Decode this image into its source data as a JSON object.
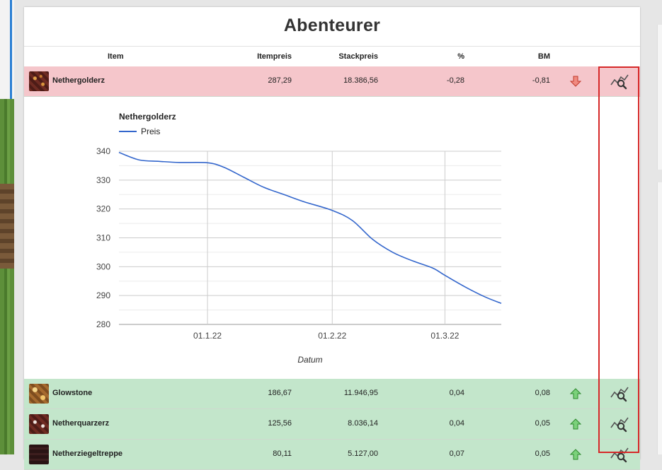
{
  "page": {
    "title": "Abenteurer"
  },
  "table": {
    "headers": {
      "item": "Item",
      "itemprice": "Itempreis",
      "stackprice": "Stackpreis",
      "percent": "%",
      "bm": "BM"
    },
    "rows": [
      {
        "name": "Nethergolderz",
        "itemprice": "287,29",
        "stackprice": "18.386,56",
        "percent": "-0,28",
        "bm": "-0,81",
        "trend": "down",
        "icon": "nether-gold-ore-icon"
      },
      {
        "name": "Glowstone",
        "itemprice": "186,67",
        "stackprice": "11.946,95",
        "percent": "0,04",
        "bm": "0,08",
        "trend": "up",
        "icon": "glowstone-icon"
      },
      {
        "name": "Netherquarzerz",
        "itemprice": "125,56",
        "stackprice": "8.036,14",
        "percent": "0,04",
        "bm": "0,05",
        "trend": "up",
        "icon": "nether-quartz-ore-icon"
      },
      {
        "name": "Netherziegeltreppe",
        "itemprice": "80,11",
        "stackprice": "5.127,00",
        "percent": "0,07",
        "bm": "0,05",
        "trend": "up",
        "icon": "nether-brick-stairs-icon"
      }
    ]
  },
  "colors": {
    "down_row": "#f5c6cb",
    "up_row": "#c3e6cb",
    "line": "#3366cc",
    "highlight": "#d62828",
    "arrow_down": "#e05a4f",
    "arrow_up": "#3aa63a"
  },
  "chart_data": {
    "type": "line",
    "title": "Nethergolderz",
    "legend": "top-left",
    "xlabel": "Datum",
    "ylabel": "",
    "ylim": [
      280,
      340
    ],
    "yticks": [
      340,
      330,
      320,
      310,
      300,
      290,
      280
    ],
    "x_ticks": [
      {
        "label": "01.1.22",
        "x": "2022-01-01"
      },
      {
        "label": "01.2.22",
        "x": "2022-02-01"
      },
      {
        "label": "01.3.22",
        "x": "2022-03-01"
      }
    ],
    "series": [
      {
        "name": "Preis",
        "points": [
          {
            "x": "2021-12-10",
            "y": 339.6
          },
          {
            "x": "2021-12-15",
            "y": 337.0
          },
          {
            "x": "2021-12-20",
            "y": 336.5
          },
          {
            "x": "2021-12-25",
            "y": 336.1
          },
          {
            "x": "2022-01-01",
            "y": 336.0
          },
          {
            "x": "2022-01-05",
            "y": 334.5
          },
          {
            "x": "2022-01-10",
            "y": 331.0
          },
          {
            "x": "2022-01-15",
            "y": 327.5
          },
          {
            "x": "2022-01-20",
            "y": 325.0
          },
          {
            "x": "2022-01-25",
            "y": 322.5
          },
          {
            "x": "2022-02-01",
            "y": 319.5
          },
          {
            "x": "2022-02-06",
            "y": 316.0
          },
          {
            "x": "2022-02-11",
            "y": 309.5
          },
          {
            "x": "2022-02-16",
            "y": 305.0
          },
          {
            "x": "2022-02-21",
            "y": 302.0
          },
          {
            "x": "2022-02-26",
            "y": 299.5
          },
          {
            "x": "2022-03-01",
            "y": 297.0
          },
          {
            "x": "2022-03-06",
            "y": 293.0
          },
          {
            "x": "2022-03-11",
            "y": 289.5
          },
          {
            "x": "2022-03-15",
            "y": 287.3
          }
        ]
      }
    ]
  }
}
